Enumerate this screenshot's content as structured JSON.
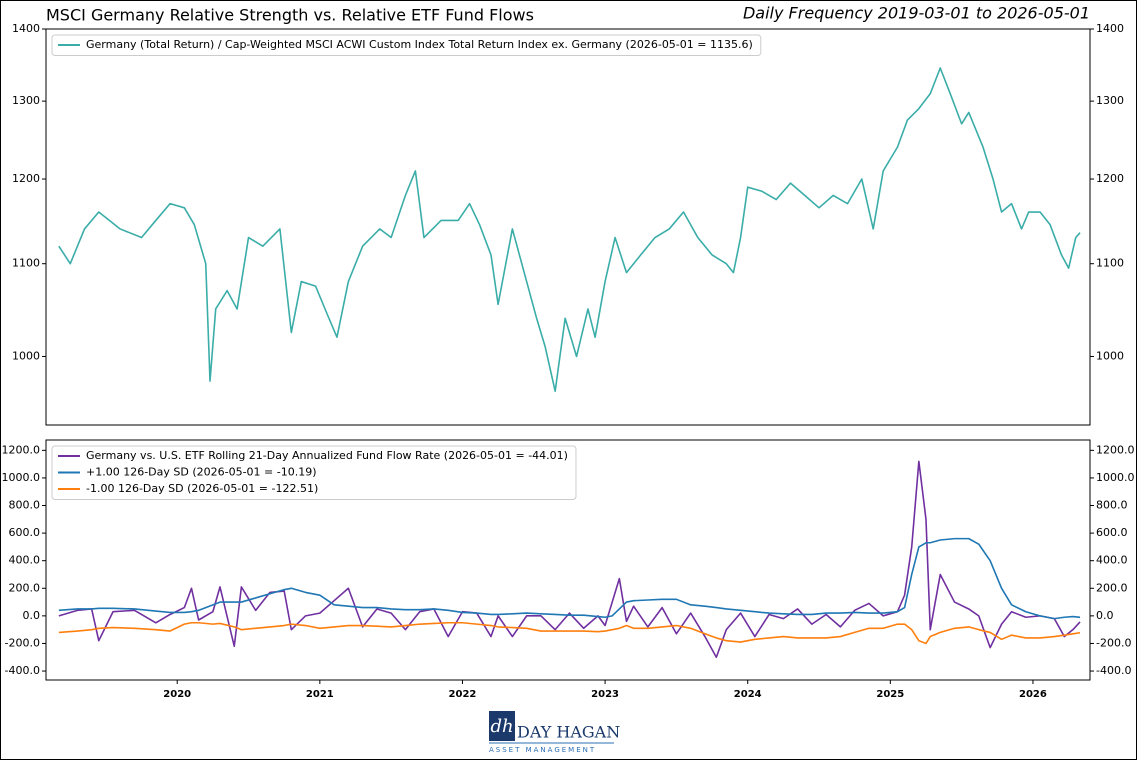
{
  "chart_data": [
    {
      "type": "line",
      "title": "MSCI Germany Relative Strength vs. Relative ETF Fund Flows",
      "subtitle": "Daily Frequency 2019-03-01 to 2026-05-01",
      "log_scale": true,
      "legend": "upper left",
      "xlim": [
        2019.08,
        2026.4
      ],
      "ylim": [
        932,
        1400
      ],
      "yticks": [
        1000,
        1100,
        1200,
        1300,
        1400
      ],
      "x": [
        2019.17,
        2019.25,
        2019.35,
        2019.45,
        2019.6,
        2019.75,
        2019.85,
        2019.95,
        2020.05,
        2020.12,
        2020.2,
        2020.23,
        2020.27,
        2020.35,
        2020.42,
        2020.5,
        2020.6,
        2020.72,
        2020.8,
        2020.87,
        2020.97,
        2021.05,
        2021.12,
        2021.2,
        2021.3,
        2021.42,
        2021.5,
        2021.6,
        2021.67,
        2021.73,
        2021.85,
        2021.97,
        2022.05,
        2022.12,
        2022.2,
        2022.25,
        2022.35,
        2022.45,
        2022.52,
        2022.58,
        2022.65,
        2022.72,
        2022.8,
        2022.88,
        2022.93,
        2023.0,
        2023.07,
        2023.15,
        2023.25,
        2023.35,
        2023.45,
        2023.55,
        2023.65,
        2023.75,
        2023.85,
        2023.9,
        2023.95,
        2024.0,
        2024.1,
        2024.2,
        2024.3,
        2024.4,
        2024.5,
        2024.6,
        2024.7,
        2024.8,
        2024.88,
        2024.95,
        2025.05,
        2025.12,
        2025.2,
        2025.28,
        2025.35,
        2025.42,
        2025.5,
        2025.55,
        2025.65,
        2025.72,
        2025.78,
        2025.85,
        2025.92,
        2025.97,
        2026.05,
        2026.12,
        2026.2,
        2026.25,
        2026.3,
        2026.33
      ],
      "series": [
        {
          "name": "Germany (Total Return) / Cap-Weighted MSCI ACWI Custom Index Total Return Index ex. Germany (2026-05-01 = 1135.6)",
          "color": "#3aada8",
          "values": [
            1120,
            1100,
            1140,
            1160,
            1140,
            1130,
            1150,
            1170,
            1165,
            1145,
            1100,
            975,
            1050,
            1070,
            1050,
            1130,
            1120,
            1140,
            1025,
            1080,
            1075,
            1045,
            1020,
            1080,
            1120,
            1140,
            1130,
            1180,
            1210,
            1130,
            1150,
            1150,
            1170,
            1145,
            1110,
            1055,
            1140,
            1080,
            1040,
            1010,
            965,
            1040,
            1000,
            1050,
            1020,
            1080,
            1130,
            1090,
            1110,
            1130,
            1140,
            1160,
            1130,
            1110,
            1100,
            1090,
            1130,
            1190,
            1185,
            1175,
            1195,
            1180,
            1165,
            1180,
            1170,
            1200,
            1140,
            1210,
            1240,
            1275,
            1290,
            1310,
            1345,
            1310,
            1270,
            1285,
            1240,
            1200,
            1160,
            1170,
            1140,
            1160,
            1160,
            1145,
            1110,
            1095,
            1130,
            1135.6
          ]
        }
      ]
    },
    {
      "type": "line",
      "legend": "upper left",
      "xlim": [
        2019.08,
        2026.4
      ],
      "ylim": [
        -465,
        1275
      ],
      "xticks": [
        2020,
        2021,
        2022,
        2023,
        2024,
        2025,
        2026
      ],
      "yticks": [
        {
          "value": -400,
          "label": "-400.0"
        },
        {
          "value": -200,
          "label": "-200.0"
        },
        {
          "value": 0,
          "label": "0.0"
        },
        {
          "value": 200,
          "label": "200.0"
        },
        {
          "value": 400,
          "label": "400.0"
        },
        {
          "value": 600,
          "label": "600.0"
        },
        {
          "value": 800,
          "label": "800.0"
        },
        {
          "value": 1000,
          "label": "1000.0"
        },
        {
          "value": 1200,
          "label": "1200.0"
        }
      ],
      "x": [
        2019.17,
        2019.3,
        2019.4,
        2019.45,
        2019.55,
        2019.7,
        2019.85,
        2019.95,
        2020.05,
        2020.1,
        2020.15,
        2020.25,
        2020.3,
        2020.4,
        2020.45,
        2020.55,
        2020.65,
        2020.75,
        2020.8,
        2020.9,
        2021.0,
        2021.1,
        2021.2,
        2021.3,
        2021.4,
        2021.5,
        2021.6,
        2021.7,
        2021.8,
        2021.9,
        2022.0,
        2022.1,
        2022.2,
        2022.25,
        2022.35,
        2022.45,
        2022.55,
        2022.65,
        2022.75,
        2022.85,
        2022.95,
        2023.0,
        2023.05,
        2023.1,
        2023.15,
        2023.2,
        2023.3,
        2023.4,
        2023.5,
        2023.6,
        2023.7,
        2023.78,
        2023.85,
        2023.95,
        2024.05,
        2024.15,
        2024.25,
        2024.35,
        2024.45,
        2024.55,
        2024.65,
        2024.75,
        2024.85,
        2024.95,
        2025.05,
        2025.1,
        2025.15,
        2025.2,
        2025.25,
        2025.28,
        2025.35,
        2025.45,
        2025.55,
        2025.62,
        2025.7,
        2025.78,
        2025.85,
        2025.95,
        2026.05,
        2026.15,
        2026.22,
        2026.28,
        2026.33
      ],
      "series": [
        {
          "name": "Germany vs. U.S. ETF Rolling 21-Day Annualized Fund Flow Rate (2026-05-01 = -44.01)",
          "color": "#7030a0",
          "values": [
            0,
            40,
            50,
            -180,
            30,
            40,
            -50,
            10,
            60,
            200,
            -30,
            30,
            210,
            -220,
            210,
            40,
            170,
            180,
            -100,
            0,
            20,
            110,
            200,
            -80,
            50,
            20,
            -100,
            30,
            50,
            -150,
            30,
            20,
            -150,
            0,
            -150,
            0,
            0,
            -100,
            20,
            -90,
            0,
            -70,
            100,
            270,
            -40,
            70,
            -80,
            60,
            -130,
            20,
            -150,
            -300,
            -100,
            20,
            -150,
            10,
            -20,
            50,
            -60,
            10,
            -80,
            40,
            90,
            0,
            30,
            150,
            500,
            1120,
            700,
            -100,
            300,
            100,
            50,
            0,
            -230,
            -60,
            30,
            -10,
            0,
            -20,
            -150,
            -100,
            -44.01
          ]
        },
        {
          "name": "+1.00 126-Day SD (2026-05-01 = -10.19)",
          "color": "#1f77b4",
          "values": [
            40,
            50,
            50,
            55,
            55,
            50,
            35,
            25,
            25,
            30,
            40,
            80,
            100,
            100,
            100,
            130,
            160,
            190,
            200,
            170,
            150,
            80,
            70,
            60,
            60,
            50,
            45,
            45,
            50,
            40,
            25,
            20,
            10,
            10,
            15,
            20,
            15,
            10,
            5,
            5,
            -5,
            -10,
            0,
            50,
            100,
            110,
            115,
            120,
            120,
            80,
            70,
            60,
            50,
            40,
            30,
            20,
            15,
            10,
            10,
            20,
            20,
            25,
            20,
            20,
            30,
            60,
            300,
            500,
            530,
            530,
            550,
            560,
            560,
            520,
            400,
            200,
            80,
            30,
            0,
            -20,
            -10,
            -5,
            -10.19
          ]
        },
        {
          "name": "-1.00 126-Day SD (2026-05-01 = -122.51)",
          "color": "#ff7f0e",
          "values": [
            -120,
            -110,
            -100,
            -90,
            -85,
            -90,
            -100,
            -110,
            -60,
            -50,
            -50,
            -60,
            -55,
            -80,
            -100,
            -90,
            -80,
            -70,
            -60,
            -70,
            -90,
            -80,
            -70,
            -70,
            -75,
            -80,
            -70,
            -60,
            -55,
            -50,
            -50,
            -60,
            -70,
            -80,
            -85,
            -90,
            -110,
            -110,
            -110,
            -110,
            -115,
            -110,
            -100,
            -90,
            -70,
            -90,
            -90,
            -80,
            -70,
            -90,
            -130,
            -160,
            -180,
            -190,
            -170,
            -160,
            -150,
            -160,
            -160,
            -160,
            -150,
            -120,
            -90,
            -90,
            -60,
            -60,
            -100,
            -180,
            -200,
            -150,
            -120,
            -90,
            -80,
            -100,
            -120,
            -170,
            -140,
            -160,
            -160,
            -150,
            -140,
            -130,
            -122.51
          ]
        }
      ]
    }
  ],
  "footer": {
    "logo": "DAY HAGAN",
    "tagline": "ASSET MANAGEMENT"
  }
}
